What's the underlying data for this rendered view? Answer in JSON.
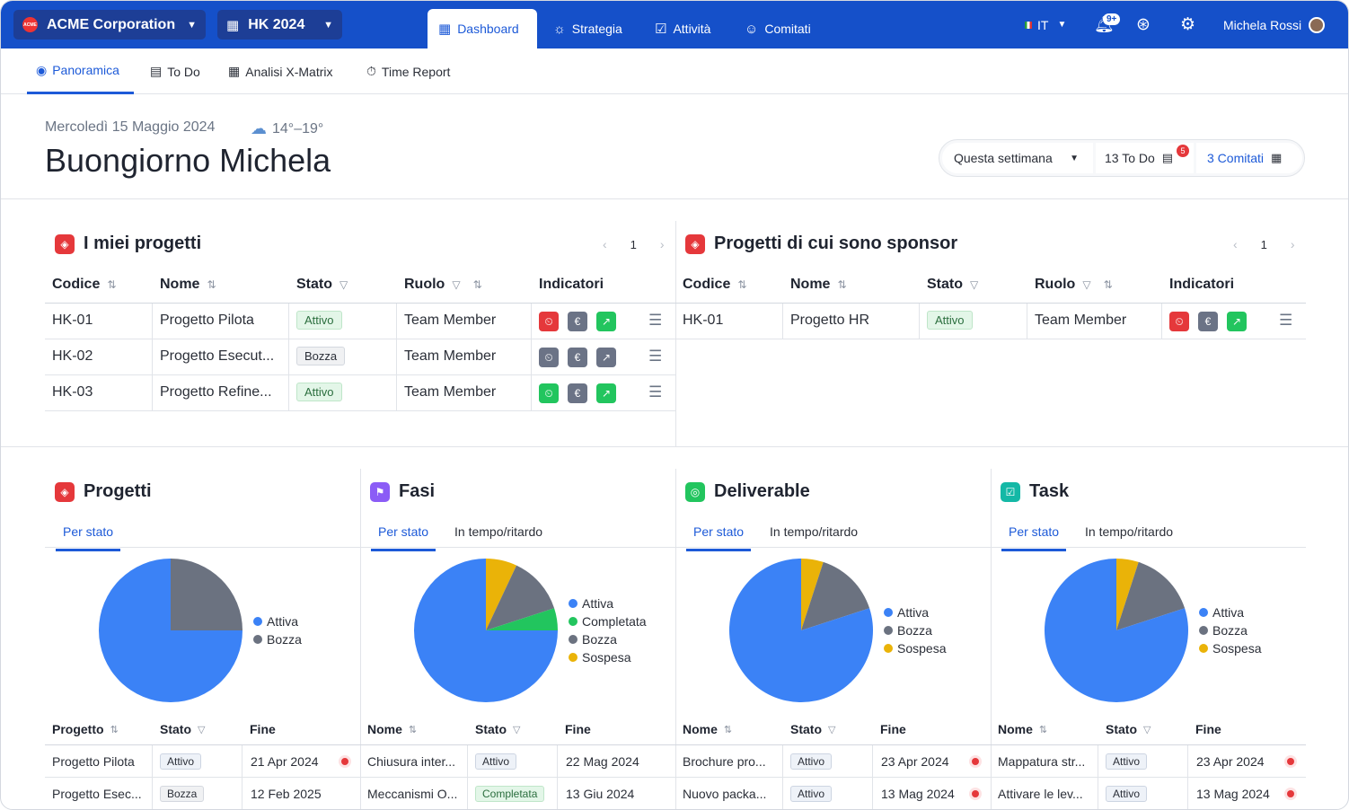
{
  "topbar": {
    "org": "ACME Corporation",
    "org_logo_text": "ACME",
    "hk": "HK 2024",
    "tabs": [
      "Dashboard",
      "Strategia",
      "Attività",
      "Comitati"
    ],
    "lang": "IT",
    "notif_badge": "9+",
    "user": "Michela Rossi"
  },
  "subnav": [
    "Panoramica",
    "To Do",
    "Analisi X-Matrix",
    "Time Report"
  ],
  "header": {
    "date": "Mercoledì 15 Maggio 2024",
    "temp": "14°–19°",
    "greeting": "Buongiorno Michela",
    "period": "Questa settimana",
    "todo": "13 To Do",
    "todo_badge": "5",
    "comitati": "3 Comitati"
  },
  "colors": {
    "primary": "#1550c9",
    "accent": "#1d5ad8",
    "red": "#e5383b",
    "green": "#22c55e",
    "gray": "#6b7280",
    "blue": "#3b82f6",
    "amber": "#eab308"
  },
  "projects": {
    "title": "I miei progetti",
    "page": "1",
    "headers": [
      "Codice",
      "Nome",
      "Stato",
      "Ruolo",
      "Indicatori"
    ],
    "rows": [
      {
        "code": "HK-01",
        "name": "Progetto Pilota",
        "status": "Attivo",
        "role": "Team Member",
        "ind": [
          "red",
          "gray",
          "green"
        ]
      },
      {
        "code": "HK-02",
        "name": "Progetto Esecut...",
        "status": "Bozza",
        "role": "Team Member",
        "ind": [
          "gray",
          "gray",
          "gray"
        ]
      },
      {
        "code": "HK-03",
        "name": "Progetto Refine...",
        "status": "Attivo",
        "role": "Team Member",
        "ind": [
          "green",
          "gray",
          "green"
        ]
      }
    ]
  },
  "sponsor": {
    "title": "Progetti di cui sono sponsor",
    "page": "1",
    "headers": [
      "Codice",
      "Nome",
      "Stato",
      "Ruolo",
      "Indicatori"
    ],
    "rows": [
      {
        "code": "HK-01",
        "name": "Progetto HR",
        "status": "Attivo",
        "role": "Team Member",
        "ind": [
          "red",
          "gray",
          "green"
        ]
      }
    ]
  },
  "panels": [
    {
      "title": "Progetti",
      "tabs": [
        "Per stato"
      ],
      "legend": [
        "Attiva",
        "Bozza"
      ],
      "col_headers": [
        "Progetto",
        "Stato",
        "Fine"
      ],
      "rows": [
        {
          "name": "Progetto Pilota",
          "status": "Attivo",
          "end": "21 Apr 2024",
          "late": true
        },
        {
          "name": "Progetto Esec...",
          "status": "Bozza",
          "end": "12 Feb 2025",
          "late": false
        }
      ]
    },
    {
      "title": "Fasi",
      "tabs": [
        "Per stato",
        "In tempo/ritardo"
      ],
      "legend": [
        "Attiva",
        "Completata",
        "Bozza",
        "Sospesa"
      ],
      "col_headers": [
        "Nome",
        "Stato",
        "Fine"
      ],
      "rows": [
        {
          "name": "Chiusura inter...",
          "status": "Attivo",
          "end": "22 Mag 2024",
          "late": false
        },
        {
          "name": "Meccanismi O...",
          "status": "Completata",
          "end": "13 Giu 2024",
          "late": false
        }
      ]
    },
    {
      "title": "Deliverable",
      "tabs": [
        "Per stato",
        "In tempo/ritardo"
      ],
      "legend": [
        "Attiva",
        "Bozza",
        "Sospesa"
      ],
      "col_headers": [
        "Nome",
        "Stato",
        "Fine"
      ],
      "rows": [
        {
          "name": "Brochure pro...",
          "status": "Attivo",
          "end": "23 Apr 2024",
          "late": true
        },
        {
          "name": "Nuovo packa...",
          "status": "Attivo",
          "end": "13 Mag 2024",
          "late": true
        }
      ]
    },
    {
      "title": "Task",
      "tabs": [
        "Per stato",
        "In tempo/ritardo"
      ],
      "legend": [
        "Attiva",
        "Bozza",
        "Sospesa"
      ],
      "col_headers": [
        "Nome",
        "Stato",
        "Fine"
      ],
      "rows": [
        {
          "name": "Mappatura str...",
          "status": "Attivo",
          "end": "23 Apr 2024",
          "late": true
        },
        {
          "name": "Attivare le lev...",
          "status": "Attivo",
          "end": "13 Mag 2024",
          "late": true
        }
      ]
    }
  ],
  "chart_data": [
    {
      "type": "pie",
      "categories": [
        "Attiva",
        "Bozza"
      ],
      "values": [
        75,
        25
      ],
      "colors": [
        "#3b82f6",
        "#6b7280"
      ]
    },
    {
      "type": "pie",
      "categories": [
        "Attiva",
        "Completata",
        "Bozza",
        "Sospesa"
      ],
      "values": [
        75,
        5,
        13,
        7
      ],
      "colors": [
        "#3b82f6",
        "#22c55e",
        "#6b7280",
        "#eab308"
      ]
    },
    {
      "type": "pie",
      "categories": [
        "Attiva",
        "Bozza",
        "Sospesa"
      ],
      "values": [
        80,
        15,
        5
      ],
      "colors": [
        "#3b82f6",
        "#6b7280",
        "#eab308"
      ]
    },
    {
      "type": "pie",
      "categories": [
        "Attiva",
        "Bozza",
        "Sospesa"
      ],
      "values": [
        80,
        15,
        5
      ],
      "colors": [
        "#3b82f6",
        "#6b7280",
        "#eab308"
      ]
    }
  ]
}
